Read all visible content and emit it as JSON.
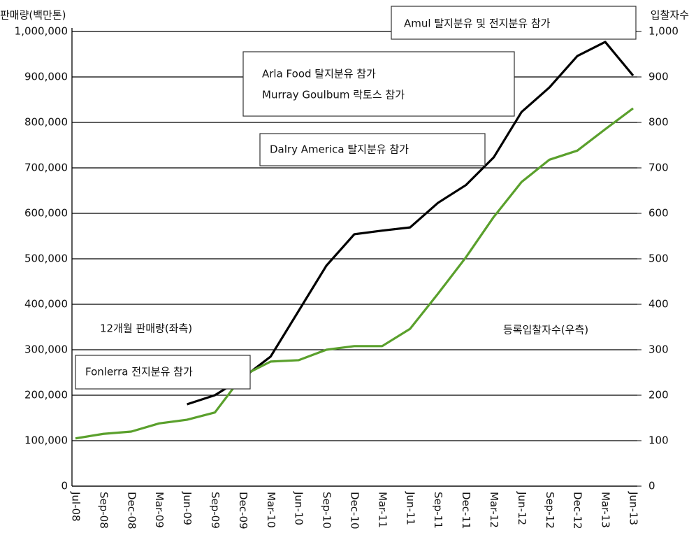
{
  "chart_data": {
    "type": "line",
    "ylabel": "판매량(백만톤)",
    "y2label": "입찰자수",
    "categories": [
      "Jul-08",
      "Sep-08",
      "Dec-08",
      "Mar-09",
      "Jun-09",
      "Sep-09",
      "Dec-09",
      "Mar-10",
      "Jun-10",
      "Sep-10",
      "Dec-10",
      "Mar-11",
      "Jun-11",
      "Sep-11",
      "Dec-11",
      "Mar-12",
      "Jun-12",
      "Sep-12",
      "Dec-12",
      "Mar-13",
      "Jun-13"
    ],
    "series": [
      {
        "name": "12개월 판매량(좌측)",
        "color": "#000000",
        "axis": "y",
        "values": [
          null,
          null,
          null,
          null,
          180000,
          200000,
          238000,
          285000,
          385000,
          485000,
          554000,
          562000,
          569000,
          623000,
          662000,
          723000,
          823000,
          877000,
          946000,
          977000,
          903000
        ]
      },
      {
        "name": "등록입찰자수(우측)",
        "color": "#5aa02c",
        "axis": "y2",
        "values": [
          105,
          115,
          120,
          138,
          146,
          162,
          243,
          274,
          277,
          300,
          308,
          308,
          346,
          423,
          503,
          592,
          669,
          718,
          738,
          785,
          831
        ]
      }
    ],
    "ylim": [
      0,
      1000000
    ],
    "yticks": [
      0,
      {
        "value": 100000,
        "label": "100,000"
      },
      {
        "value": 200000,
        "label": "200,000"
      },
      {
        "value": 300000,
        "label": "300,000"
      },
      {
        "value": 400000,
        "label": "400,000"
      },
      {
        "value": 500000,
        "label": "500,000"
      },
      {
        "value": 600000,
        "label": "600,000"
      },
      {
        "value": 700000,
        "label": "700,000"
      },
      {
        "value": 800000,
        "label": "800,000"
      },
      {
        "value": 900000,
        "label": "900,000"
      },
      {
        "value": 1000000,
        "label": "1,000,000"
      }
    ],
    "y2lim": [
      0,
      1000
    ],
    "y2ticks": [
      0,
      100,
      200,
      300,
      400,
      500,
      600,
      700,
      800,
      900,
      {
        "value": 1000,
        "label": "1,000"
      }
    ],
    "grid": true,
    "annotations": [
      "Amul 탈지분유 및 전지분유 참가",
      "Arla Food 탈지분유 참가",
      "Murray Goulbum 락토스 참가",
      "Dalry America 탈지분유 참가",
      "Fonlerra 전지분유 참가"
    ]
  }
}
